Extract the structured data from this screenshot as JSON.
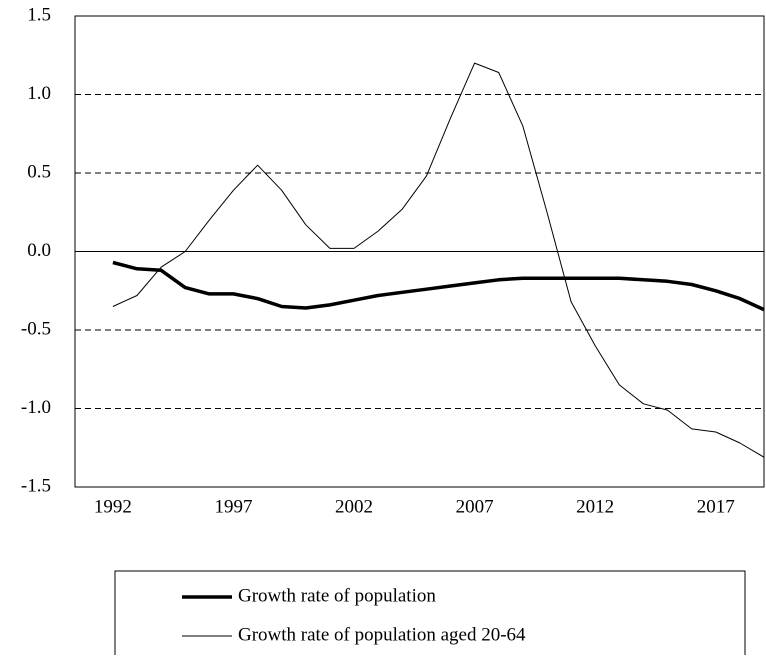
{
  "chart_data": {
    "type": "line",
    "x": [
      1992,
      1993,
      1994,
      1995,
      1996,
      1997,
      1998,
      1999,
      2000,
      2001,
      2002,
      2003,
      2004,
      2005,
      2006,
      2007,
      2008,
      2009,
      2010,
      2011,
      2012,
      2013,
      2014,
      2015,
      2016,
      2017,
      2018,
      2019
    ],
    "series": [
      {
        "name": "Growth rate of population",
        "color": "#000000",
        "width": 3.5,
        "values": [
          -0.07,
          -0.11,
          -0.12,
          -0.23,
          -0.27,
          -0.27,
          -0.3,
          -0.35,
          -0.36,
          -0.34,
          -0.31,
          -0.28,
          -0.26,
          -0.24,
          -0.22,
          -0.2,
          -0.18,
          -0.17,
          -0.17,
          -0.17,
          -0.17,
          -0.17,
          -0.18,
          -0.19,
          -0.21,
          -0.25,
          -0.3,
          -0.37
        ]
      },
      {
        "name": "Growth rate of population aged 20-64",
        "color": "#000000",
        "width": 1,
        "values": [
          -0.35,
          -0.28,
          -0.1,
          0.0,
          0.2,
          0.39,
          0.55,
          0.39,
          0.17,
          0.02,
          0.02,
          0.13,
          0.27,
          0.48,
          0.85,
          1.2,
          1.14,
          0.8,
          0.25,
          -0.32,
          -0.6,
          -0.85,
          -0.97,
          -1.01,
          -1.13,
          -1.15,
          -1.22,
          -1.31
        ]
      }
    ],
    "xlim": [
      1990.43,
      2019
    ],
    "xticks": [
      1992,
      1997,
      2002,
      2007,
      2012,
      2017
    ],
    "ylim": [
      -1.5,
      1.5
    ],
    "yticks": [
      {
        "value": -1.5,
        "label": "-1.5"
      },
      {
        "value": -1.0,
        "label": "-1.0"
      },
      {
        "value": -0.5,
        "label": "-0.5"
      },
      {
        "value": 0,
        "label": "0.0"
      },
      {
        "value": 0.5,
        "label": "0.5"
      },
      {
        "value": 1.0,
        "label": "1.0"
      },
      {
        "value": 1.5,
        "label": "1.5"
      }
    ],
    "grid": true,
    "legend": "bottom"
  }
}
